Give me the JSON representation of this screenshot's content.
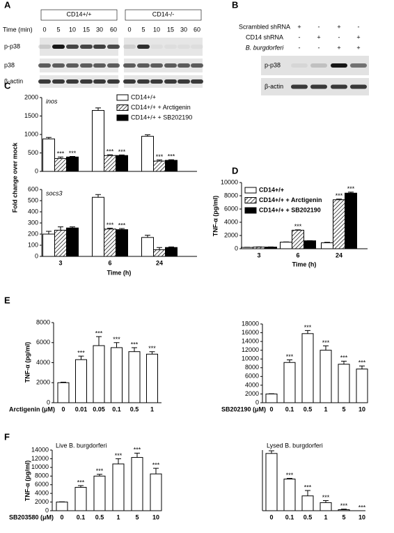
{
  "panels": [
    "A",
    "B",
    "C",
    "D",
    "E",
    "F"
  ],
  "blots": {
    "A": {
      "groups": [
        "CD14+/+",
        "CD14-/-"
      ],
      "time_label": "Time (min)",
      "times": [
        [
          0,
          5,
          10,
          15,
          30,
          60
        ],
        [
          0,
          5,
          10,
          15,
          30,
          60
        ]
      ],
      "rows": [
        "p-p38",
        "p38",
        "β-actin"
      ]
    },
    "B": {
      "conditions": [
        {
          "label": "Scrambled shRNA",
          "signs": [
            "+",
            "-",
            "+",
            "-"
          ]
        },
        {
          "label": "CD14 shRNA",
          "signs": [
            "-",
            "+",
            "-",
            "+"
          ]
        },
        {
          "label": "B. burgdorferi",
          "signs": [
            "-",
            "-",
            "+",
            "+"
          ]
        }
      ],
      "rows": [
        "p-p38",
        "β-actin"
      ]
    }
  },
  "chart_data": [
    {
      "type": "bar",
      "title": "inos",
      "y_label": "Fold change over mock",
      "categories": [
        null,
        null,
        null
      ],
      "ylim": [
        0,
        2000
      ],
      "yticks": [
        0,
        500,
        1000,
        1500,
        2000
      ],
      "legend": "upper right",
      "series": [
        {
          "name": "CD14+/+",
          "color": "#ffffff",
          "values": [
            880,
            1650,
            950
          ],
          "errors": [
            40,
            70,
            40
          ],
          "significance": [
            null,
            null,
            null
          ]
        },
        {
          "name": "CD14+/+ + Arctigenin",
          "color": "hatch",
          "values": [
            350,
            430,
            280
          ],
          "errors": [
            40,
            20,
            30
          ],
          "significance": [
            "***",
            "***",
            "***"
          ]
        },
        {
          "name": "CD14+/+ + SB202190",
          "color": "#000000",
          "values": [
            390,
            430,
            300
          ],
          "errors": [
            15,
            15,
            15
          ],
          "significance": [
            "***",
            "***",
            "***"
          ]
        }
      ]
    },
    {
      "type": "bar",
      "title": "socs3",
      "x_label": "Time (h)",
      "categories": [
        "3",
        "6",
        "24"
      ],
      "ylim": [
        0,
        600
      ],
      "yticks": [
        0,
        100,
        200,
        300,
        400,
        500,
        600
      ],
      "series": [
        {
          "color": "#ffffff",
          "values": [
            200,
            530,
            170
          ],
          "errors": [
            25,
            25,
            20
          ],
          "significance": [
            null,
            null,
            null
          ]
        },
        {
          "color": "hatch",
          "values": [
            235,
            245,
            60
          ],
          "errors": [
            30,
            8,
            20
          ],
          "significance": [
            null,
            "***",
            null
          ]
        },
        {
          "color": "#000000",
          "values": [
            255,
            240,
            80
          ],
          "errors": [
            10,
            10,
            5
          ],
          "significance": [
            null,
            "***",
            null
          ]
        }
      ]
    },
    {
      "type": "bar",
      "x_label": "Time (h)",
      "y_label": "TNF-α (pg/ml)",
      "categories": [
        "3",
        "6",
        "24"
      ],
      "ylim": [
        0,
        10000
      ],
      "yticks": [
        0,
        2000,
        4000,
        6000,
        8000,
        10000
      ],
      "legend": "upper left",
      "series": [
        {
          "name": "CD14+/+",
          "color": "#ffffff",
          "values": [
            200,
            1000,
            900
          ],
          "errors": [
            20,
            20,
            80
          ],
          "significance": [
            null,
            null,
            null
          ]
        },
        {
          "name": "CD14+/+ + Arctigenin",
          "color": "hatch",
          "values": [
            250,
            2800,
            7400
          ],
          "errors": [
            20,
            60,
            100
          ],
          "significance": [
            null,
            "***",
            "***"
          ]
        },
        {
          "name": "CD14+/+ + SB202190",
          "color": "#000000",
          "values": [
            250,
            1200,
            8400
          ],
          "errors": [
            20,
            30,
            150
          ],
          "significance": [
            null,
            null,
            "***"
          ]
        }
      ]
    },
    {
      "type": "bar",
      "x_label": "Arctigenin (μM)",
      "y_label": "TNF-α (pg/ml)",
      "categories": [
        "0",
        "0.01",
        "0.05",
        "0.1",
        "0.5",
        "1"
      ],
      "ylim": [
        0,
        8000
      ],
      "yticks": [
        0,
        2000,
        4000,
        6000,
        8000
      ],
      "series": [
        {
          "color": "#ffffff",
          "values": [
            2000,
            4300,
            5700,
            5500,
            5100,
            4850
          ],
          "errors": [
            50,
            350,
            900,
            500,
            400,
            250
          ],
          "significance": [
            null,
            "***",
            "***",
            "***",
            "***",
            "***"
          ]
        }
      ]
    },
    {
      "type": "bar",
      "x_label": "SB202190 (μM)",
      "categories": [
        "0",
        "0.1",
        "0.5",
        "1",
        "5",
        "10"
      ],
      "ylim": [
        0,
        18000
      ],
      "yticks": [
        0,
        2000,
        4000,
        6000,
        8000,
        10000,
        12000,
        14000,
        16000,
        18000
      ],
      "series": [
        {
          "color": "#ffffff",
          "values": [
            2000,
            9200,
            15800,
            12000,
            8800,
            7700
          ],
          "errors": [
            50,
            600,
            700,
            1000,
            700,
            700
          ],
          "significance": [
            null,
            "***",
            "***",
            "***",
            "***",
            "***"
          ]
        }
      ]
    },
    {
      "type": "bar",
      "title": "Live B. burgdorferi",
      "x_label": "SB203580 (μM)",
      "y_label": "TNF-α (pg/ml)",
      "categories": [
        "0",
        "0.1",
        "0.5",
        "1",
        "5",
        "10"
      ],
      "ylim": [
        0,
        14000
      ],
      "yticks": [
        0,
        2000,
        4000,
        6000,
        8000,
        10000,
        12000,
        14000
      ],
      "series": [
        {
          "color": "#ffffff",
          "values": [
            2000,
            5400,
            8000,
            10800,
            12300,
            8500
          ],
          "errors": [
            50,
            400,
            400,
            1200,
            1000,
            1300
          ],
          "significance": [
            null,
            "***",
            "***",
            "***",
            "***",
            "***"
          ]
        }
      ]
    },
    {
      "type": "bar",
      "title": "Lysed B. burgdorferi",
      "categories": [
        "0",
        "0.1",
        "0.5",
        "1",
        "5",
        "10"
      ],
      "ylim": [
        0,
        900
      ],
      "series": [
        {
          "color": "#ffffff",
          "values": [
            850,
            470,
            220,
            120,
            15,
            0
          ],
          "errors": [
            40,
            10,
            80,
            30,
            8,
            0
          ],
          "significance": [
            null,
            "***",
            "***",
            "***",
            "***",
            "***"
          ]
        }
      ]
    }
  ]
}
